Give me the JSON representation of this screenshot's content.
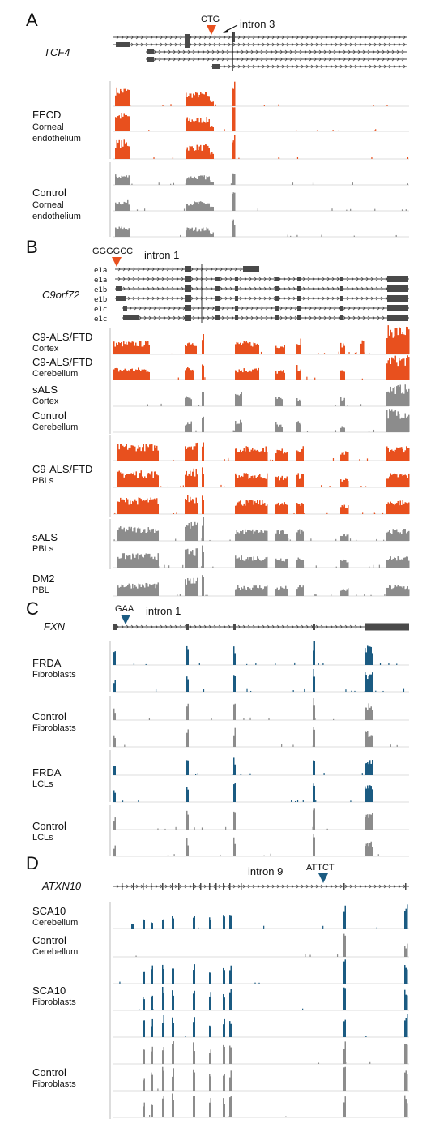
{
  "colors": {
    "disease_red": "#e8501e",
    "disease_blue": "#1b5b82",
    "control_gray": "#8c8c8c",
    "gene_model": "#4a4a4a"
  },
  "panels": [
    {
      "letter": "A",
      "gene": "TCF4",
      "repeat": "CTG",
      "repeat_color": "#e8501e",
      "intron": "intron 3",
      "transcripts": 5,
      "groups": [
        {
          "condition": "FECD",
          "tissue": [
            "Corneal",
            "endothelium"
          ],
          "color": "#e8501e",
          "tracks": 3
        },
        {
          "condition": "Control",
          "tissue": [
            "Corneal",
            "endothelium"
          ],
          "color": "#8c8c8c",
          "tracks": 3
        }
      ]
    },
    {
      "letter": "B",
      "gene": "C9orf72",
      "repeat": "GGGGCC",
      "repeat_color": "#e8501e",
      "intron": "intron 1",
      "exon_labels": [
        "e1a",
        "e1a",
        "e1b",
        "e1b",
        "e1c",
        "e1c"
      ],
      "groups": [
        {
          "condition": "C9-ALS/FTD",
          "tissue": [
            "Cortex"
          ],
          "color": "#e8501e",
          "tracks": 1
        },
        {
          "condition": "C9-ALS/FTD",
          "tissue": [
            "Cerebellum"
          ],
          "color": "#e8501e",
          "tracks": 1
        },
        {
          "condition": "sALS",
          "tissue": [
            "Cortex"
          ],
          "color": "#8c8c8c",
          "tracks": 1
        },
        {
          "condition": "Control",
          "tissue": [
            "Cerebellum"
          ],
          "color": "#8c8c8c",
          "tracks": 1
        },
        {
          "condition": "C9-ALS/FTD",
          "tissue": [
            "PBLs"
          ],
          "color": "#e8501e",
          "tracks": 3
        },
        {
          "condition": "sALS",
          "tissue": [
            "PBLs"
          ],
          "color": "#8c8c8c",
          "tracks": 2
        },
        {
          "condition": "DM2",
          "tissue": [
            "PBL"
          ],
          "color": "#8c8c8c",
          "tracks": 1
        }
      ]
    },
    {
      "letter": "C",
      "gene": "FXN",
      "repeat": "GAA",
      "repeat_color": "#1b5b82",
      "intron": "intron 1",
      "groups": [
        {
          "condition": "FRDA",
          "tissue": [
            "Fibroblasts"
          ],
          "color": "#1b5b82",
          "tracks": 2
        },
        {
          "condition": "Control",
          "tissue": [
            "Fibroblasts"
          ],
          "color": "#8c8c8c",
          "tracks": 2
        },
        {
          "condition": "FRDA",
          "tissue": [
            "LCLs"
          ],
          "color": "#1b5b82",
          "tracks": 2
        },
        {
          "condition": "Control",
          "tissue": [
            "LCLs"
          ],
          "color": "#8c8c8c",
          "tracks": 2
        }
      ]
    },
    {
      "letter": "D",
      "gene": "ATXN10",
      "repeat": "ATTCT",
      "repeat_color": "#1b5b82",
      "intron": "intron 9",
      "groups": [
        {
          "condition": "SCA10",
          "tissue": [
            "Cerebellum"
          ],
          "color": "#1b5b82",
          "tracks": 1
        },
        {
          "condition": "Control",
          "tissue": [
            "Cerebellum"
          ],
          "color": "#8c8c8c",
          "tracks": 1
        },
        {
          "condition": "SCA10",
          "tissue": [
            "Fibroblasts"
          ],
          "color": "#1b5b82",
          "tracks": 3
        },
        {
          "condition": "Control",
          "tissue": [
            "Fibroblasts"
          ],
          "color": "#8c8c8c",
          "tracks": 3
        }
      ]
    }
  ]
}
